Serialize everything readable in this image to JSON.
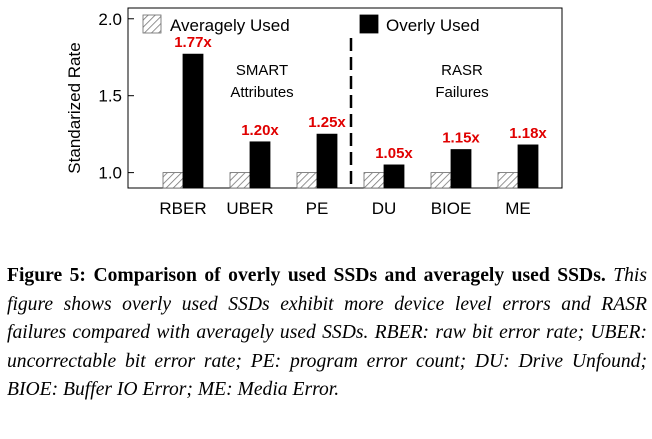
{
  "chart_data": {
    "type": "bar",
    "ylabel": "Standarized Rate",
    "ylim": [
      0.9,
      2.07
    ],
    "yticks": [
      1.0,
      1.5,
      2.0
    ],
    "ytick_labels": [
      "1.0",
      "1.5",
      "2.0"
    ],
    "categories": [
      "RBER",
      "UBER",
      "PE",
      "DU",
      "BIOE",
      "ME"
    ],
    "series": [
      {
        "name": "Averagely Used",
        "values": [
          1.0,
          1.0,
          1.0,
          1.0,
          1.0,
          1.0
        ],
        "pattern": "hatch"
      },
      {
        "name": "Overly Used",
        "values": [
          1.77,
          1.2,
          1.25,
          1.05,
          1.15,
          1.18
        ],
        "color": "#000000"
      }
    ],
    "annotations": [
      "1.77x",
      "1.20x",
      "1.25x",
      "1.05x",
      "1.15x",
      "1.18x"
    ],
    "annotation_color": "#e00000",
    "groups": [
      {
        "lines": [
          "SMART",
          "Attributes"
        ]
      },
      {
        "lines": [
          "RASR",
          "Failures"
        ]
      }
    ],
    "legend_position": "top",
    "grid": false
  },
  "caption": {
    "title": "Figure 5: Comparison of overly used SSDs and averagely used SSDs.",
    "body": "This figure shows overly used SSDs exhibit more device level errors and RASR failures compared with averagely used SSDs. RBER: raw bit error rate; UBER: uncorrectable bit error rate; PE: program error count; DU: Drive Unfound; BIOE: Buffer IO Error; ME: Media Error."
  }
}
